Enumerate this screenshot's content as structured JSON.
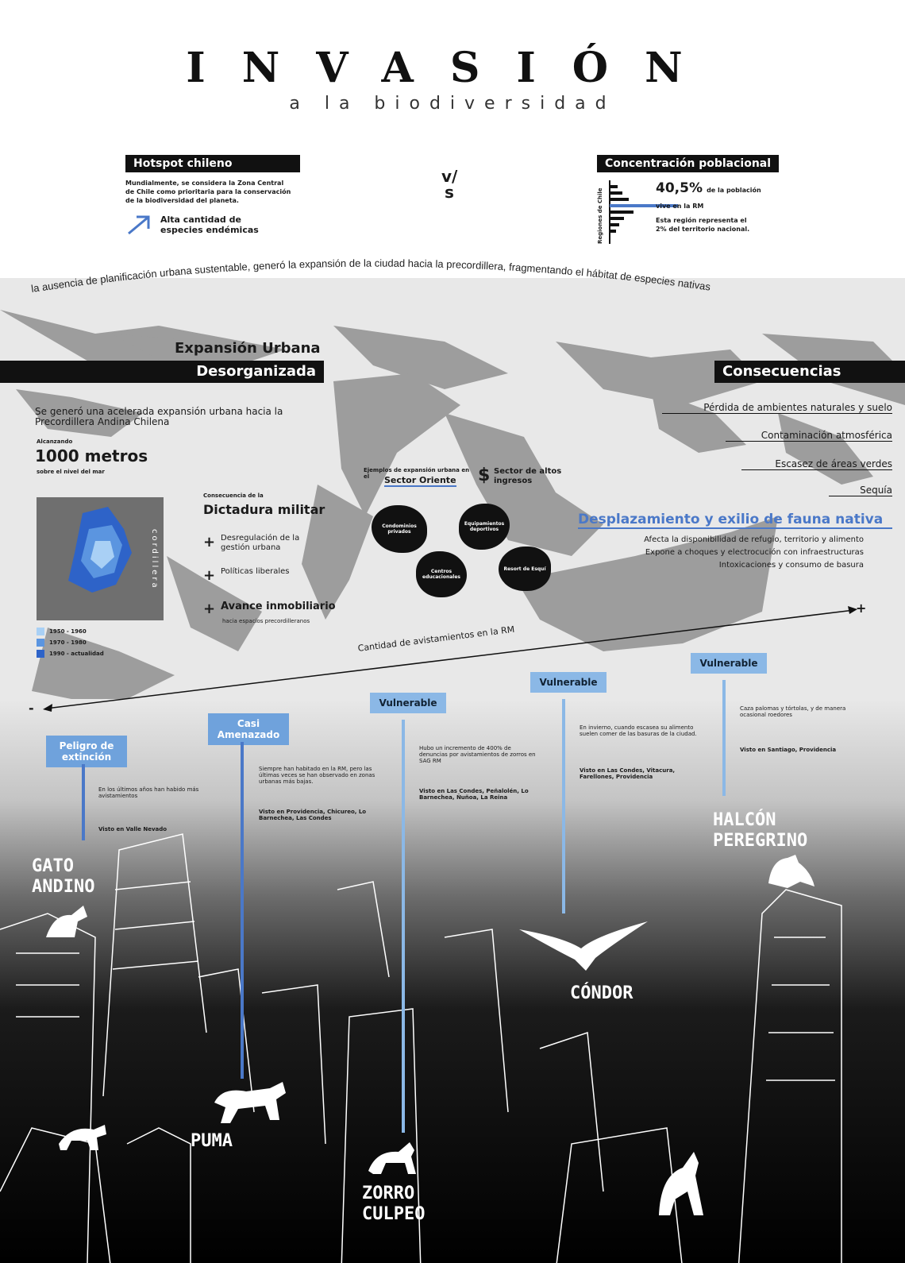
{
  "header": {
    "title": "INVASIÓN",
    "subtitle": "a la biodiversidad"
  },
  "hotspot": {
    "tag": "Hotspot chileno",
    "text": "Mundialmente, se considera la Zona Central de Chile como prioritaria para la conservación de la biodiversidad del planeta.",
    "highlight": "Alta cantidad de especies endémicas"
  },
  "vs": "v/s",
  "poblacion": {
    "tag": "Concentración poblacional",
    "axis": "Regiones de Chile",
    "percent": "40,5%",
    "percent_tail": "de la población",
    "percent_sub": "vive en la RM",
    "note": "Esta región representa el 2% del territorio nacional."
  },
  "arc_text": "la ausencia de planificación urbana sustentable, generó la expansión de la ciudad hacia la precordillera, fragmentando el hábitat de especies nativas",
  "expansion": {
    "title1": "Expansión Urbana",
    "title2": "Desorganizada",
    "intro": "Se generó una acelerada expansión urbana hacia la Precordillera Andina Chilena",
    "reach_label": "Alcanzando",
    "reach_value": "1000 metros",
    "reach_sub": "sobre el nivel del mar",
    "map_label": "cordillera",
    "legend": [
      {
        "label": "1950 - 1960",
        "color": "#a9d0f5"
      },
      {
        "label": "1970 - 1980",
        "color": "#5b95e0"
      },
      {
        "label": "1990 - actualidad",
        "color": "#2e63c8"
      }
    ]
  },
  "dictadura": {
    "pre": "Consecuencia de la",
    "title": "Dictadura militar",
    "items": [
      "Desregulación de la gestión urbana",
      "Políticas liberales",
      "Avance inmobiliario"
    ],
    "item_sub": "hacia espacios precordilleranos"
  },
  "oriente": {
    "pre": "Ejemplos de expansión urbana en el",
    "title": "Sector Oriente",
    "money_symbol": "$",
    "money_text": "Sector de altos ingresos",
    "blobs": [
      "Condominios privados",
      "Equipamientos deportivos",
      "Centros educacionales",
      "Resort de Esquí"
    ]
  },
  "consecuencias": {
    "title": "Consecuencias",
    "items": [
      "Pérdida de ambientes naturales y suelo",
      "Contaminación atmosférica",
      "Escasez de áreas verdes",
      "Sequía"
    ],
    "highlight": "Desplazamiento y exilio de fauna nativa",
    "details": [
      "Afecta la disponibilidad de refugio, territorio y alimento",
      "Expone a choques y electrocución con infraestructuras",
      "Intoxicaciones y consumo de basura"
    ]
  },
  "axis": {
    "label": "Cantidad de avistamientos en la RM",
    "minus": "-",
    "plus": "+"
  },
  "species": [
    {
      "status": "Peligro de extinción",
      "text": "En los últimos años han habido más avistamientos",
      "seen": "Visto en Valle Nevado",
      "name": "GATO ANDINO"
    },
    {
      "status": "Casi Amenazado",
      "text": "Siempre han habitado en la RM, pero las últimas veces se han observado en zonas urbanas más bajas.",
      "seen": "Visto en Providencia, Chicureo, Lo Barnechea, Las Condes",
      "name": "PUMA"
    },
    {
      "status": "Vulnerable",
      "text": "Hubo un incremento de 400% de denuncias por avistamientos de zorros en SAG RM",
      "seen": "Visto en Las Condes, Peñalolén, Lo Barnechea, Ñuñoa, La Reina",
      "name": "ZORRO CULPEO"
    },
    {
      "status": "Vulnerable",
      "text": "En invierno, cuando escasea su alimento suelen comer de las basuras de la ciudad.",
      "seen": "Visto en Las Condes, Vitacura, Farellones, Providencia",
      "name": "CÓNDOR"
    },
    {
      "status": "Vulnerable",
      "text": "Caza palomas y tórtolas, y de manera ocasional roedores",
      "seen": "Visto en Santiago, Providencia",
      "name": "HALCÓN PEREGRINO"
    }
  ],
  "colors": {
    "accent": "#4a78c8",
    "status_bg": "#8bb8e6",
    "dark": "#111111"
  }
}
